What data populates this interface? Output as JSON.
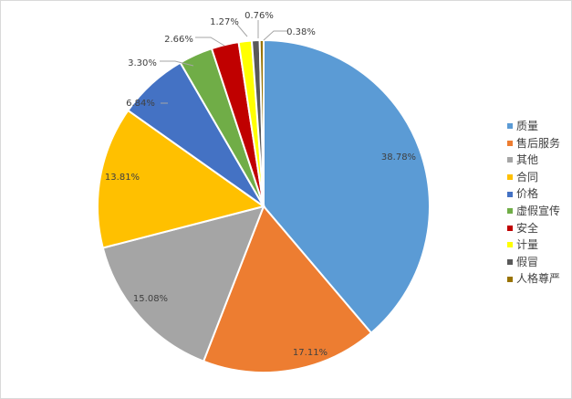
{
  "chart_data": {
    "type": "pie",
    "categories": [
      "质量",
      "售后服务",
      "其他",
      "合同",
      "价格",
      "虚假宣传",
      "安全",
      "计量",
      "假冒",
      "人格尊严"
    ],
    "values": [
      38.78,
      17.11,
      15.08,
      13.81,
      6.84,
      3.3,
      2.66,
      1.27,
      0.76,
      0.38
    ],
    "labels": [
      "38.78%",
      "17.11%",
      "15.08%",
      "13.81%",
      "6.84%",
      "3.30%",
      "2.66%",
      "1.27%",
      "0.76%",
      "0.38%"
    ],
    "colors": [
      "#5b9bd5",
      "#ed7d31",
      "#a5a5a5",
      "#ffc000",
      "#4472c4",
      "#70ad47",
      "#c00000",
      "#ffff00",
      "#595959",
      "#997300"
    ],
    "title": "",
    "legend_position": "right"
  }
}
